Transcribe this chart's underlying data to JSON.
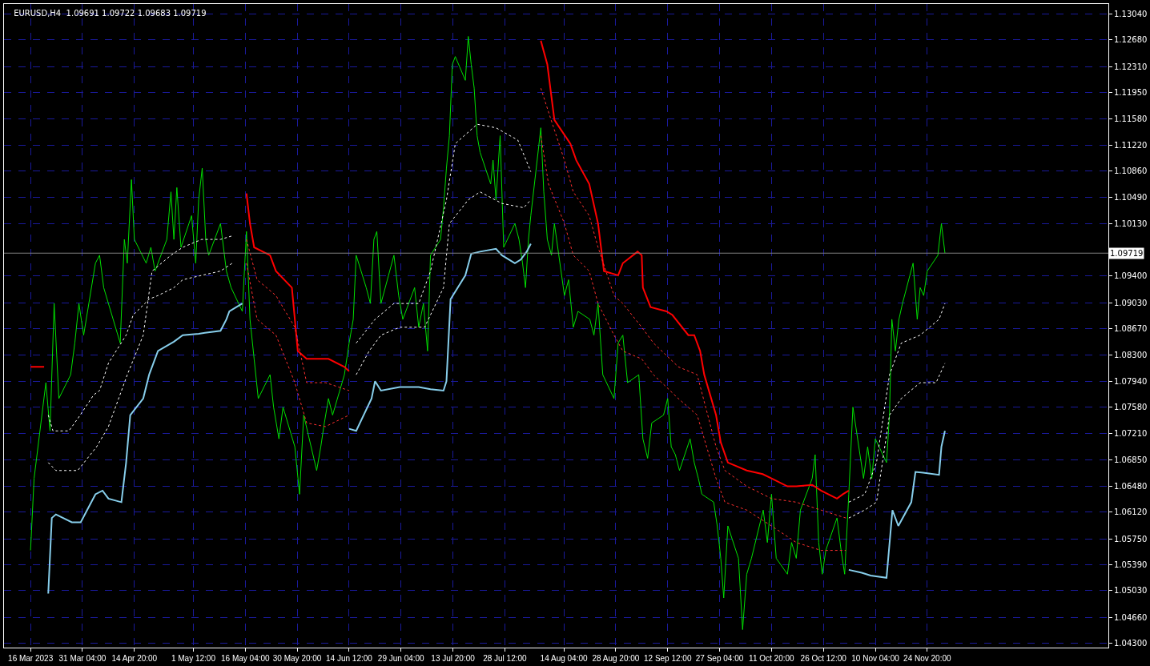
{
  "chart_data": {
    "type": "line",
    "title": "EURUSD,H4  1.09691 1.09722 1.09683 1.09719",
    "xlim": [
      "2023-03-09T00:00",
      "2024-01-15T00:00"
    ],
    "ylim": [
      1.0424,
      1.1318
    ],
    "xticks": [
      {
        "value": "2023-03-16T12:00",
        "label": "16 Mar 2023"
      },
      {
        "value": "2023-03-31T04:00",
        "label": "31 Mar 04:00"
      },
      {
        "value": "2023-04-14T20:00",
        "label": "14 Apr 20:00"
      },
      {
        "value": "2023-05-01T12:00",
        "label": "1 May 12:00"
      },
      {
        "value": "2023-05-16T04:00",
        "label": "16 May 04:00"
      },
      {
        "value": "2023-05-30T20:00",
        "label": "30 May 20:00"
      },
      {
        "value": "2023-06-14T12:00",
        "label": "14 Jun 12:00"
      },
      {
        "value": "2023-06-29T04:00",
        "label": "29 Jun 04:00"
      },
      {
        "value": "2023-07-13T20:00",
        "label": "13 Jul 20:00"
      },
      {
        "value": "2023-07-28T12:00",
        "label": "28 Jul 12:00"
      },
      {
        "value": "2023-08-14T04:00",
        "label": "14 Aug 04:00"
      },
      {
        "value": "2023-08-28T20:00",
        "label": "28 Aug 20:00"
      },
      {
        "value": "2023-09-12T12:00",
        "label": "12 Sep 12:00"
      },
      {
        "value": "2023-09-27T04:00",
        "label": "27 Sep 04:00"
      },
      {
        "value": "2023-10-11T20:00",
        "label": "11 Oct 20:00"
      },
      {
        "value": "2023-10-26T12:00",
        "label": "26 Oct 12:00"
      },
      {
        "value": "2023-11-10T04:00",
        "label": "10 Nov 04:00"
      },
      {
        "value": "2023-11-24T20:00",
        "label": "24 Nov 20:00"
      }
    ],
    "yticks": [
      {
        "value": 1.043,
        "label": "1.04300"
      },
      {
        "value": 1.0466,
        "label": "1.04660"
      },
      {
        "value": 1.0503,
        "label": "1.05030"
      },
      {
        "value": 1.0539,
        "label": "1.05390"
      },
      {
        "value": 1.0575,
        "label": "1.05750"
      },
      {
        "value": 1.0612,
        "label": "1.06120"
      },
      {
        "value": 1.0648,
        "label": "1.06480"
      },
      {
        "value": 1.0685,
        "label": "1.06850"
      },
      {
        "value": 1.0721,
        "label": "1.07210"
      },
      {
        "value": 1.0758,
        "label": "1.07580"
      },
      {
        "value": 1.0794,
        "label": "1.07940"
      },
      {
        "value": 1.083,
        "label": "1.08300"
      },
      {
        "value": 1.0867,
        "label": "1.08670"
      },
      {
        "value": 1.0903,
        "label": "1.09030"
      },
      {
        "value": 1.094,
        "label": "1.09400"
      },
      {
        "value": 1.1013,
        "label": "1.10130"
      },
      {
        "value": 1.1049,
        "label": "1.10490"
      },
      {
        "value": 1.1086,
        "label": "1.10860"
      },
      {
        "value": 1.1122,
        "label": "1.11220"
      },
      {
        "value": 1.1158,
        "label": "1.11580"
      },
      {
        "value": 1.1195,
        "label": "1.11950"
      },
      {
        "value": 1.1231,
        "label": "1.12310"
      },
      {
        "value": 1.1268,
        "label": "1.12680"
      },
      {
        "value": 1.1304,
        "label": "1.13040"
      }
    ],
    "grid": true,
    "marker": "none",
    "ref_lines": [
      {
        "axis": "y",
        "value": 1.09719,
        "label": "1.09719",
        "color": "#808080",
        "line_style": "solid"
      }
    ],
    "series": [
      {
        "color": "#00e000",
        "line_style": "solid",
        "x": [
          "2023-03-16T12:00",
          "2023-03-17T12:00",
          "2023-03-20T20:00",
          "2023-03-22T00:00",
          "2023-03-23T04:00",
          "2023-03-24T12:00",
          "2023-03-27T20:00",
          "2023-03-29T00:00",
          "2023-03-30T04:00",
          "2023-03-31T12:00",
          "2023-04-03T20:00",
          "2023-04-05T00:00",
          "2023-04-06T04:00",
          "2023-04-07T12:00",
          "2023-04-10T20:00",
          "2023-04-12T00:00",
          "2023-04-12T20:00",
          "2023-04-14T00:00",
          "2023-04-14T20:00",
          "2023-04-18T04:00",
          "2023-04-19T12:00",
          "2023-04-20T16:00",
          "2023-04-24T00:00",
          "2023-04-25T04:00",
          "2023-04-26T00:00",
          "2023-04-26T20:00",
          "2023-04-28T00:00",
          "2023-05-01T00:00",
          "2023-05-02T04:00",
          "2023-05-03T00:00",
          "2023-05-04T00:00",
          "2023-05-05T00:00",
          "2023-05-05T20:00",
          "2023-05-09T04:00",
          "2023-05-10T20:00",
          "2023-05-12T04:00",
          "2023-05-15T08:00",
          "2023-05-16T12:00",
          "2023-05-17T12:00",
          "2023-05-18T16:00",
          "2023-05-19T20:00",
          "2023-05-23T04:00",
          "2023-05-24T04:00",
          "2023-05-25T16:00",
          "2023-05-26T20:00",
          "2023-05-30T04:00",
          "2023-05-31T12:00",
          "2023-06-01T16:00",
          "2023-06-05T08:00",
          "2023-06-06T12:00",
          "2023-06-07T12:00",
          "2023-06-08T16:00",
          "2023-06-09T20:00",
          "2023-06-13T04:00",
          "2023-06-14T12:00",
          "2023-06-15T16:00",
          "2023-06-16T12:00",
          "2023-06-19T08:00",
          "2023-06-20T12:00",
          "2023-06-21T12:00",
          "2023-06-22T08:00",
          "2023-06-23T12:00",
          "2023-06-27T04:00",
          "2023-06-28T12:00",
          "2023-06-29T16:00",
          "2023-07-03T00:00",
          "2023-07-04T04:00",
          "2023-07-05T12:00",
          "2023-07-06T16:00",
          "2023-07-07T12:00",
          "2023-07-10T08:00",
          "2023-07-11T04:00",
          "2023-07-12T00:00",
          "2023-07-12T20:00",
          "2023-07-13T16:00",
          "2023-07-14T12:00",
          "2023-07-17T08:00",
          "2023-07-18T04:00",
          "2023-07-19T00:00",
          "2023-07-19T20:00",
          "2023-07-20T16:00",
          "2023-07-21T12:00",
          "2023-07-24T12:00",
          "2023-07-25T04:00",
          "2023-07-26T00:00",
          "2023-07-27T04:00",
          "2023-07-28T04:00",
          "2023-07-31T08:00",
          "2023-08-01T12:00",
          "2023-08-02T12:00",
          "2023-08-03T08:00",
          "2023-08-04T04:00",
          "2023-08-04T20:00",
          "2023-08-07T16:00",
          "2023-08-08T12:00",
          "2023-08-09T12:00",
          "2023-08-10T16:00",
          "2023-08-11T12:00",
          "2023-08-14T08:00",
          "2023-08-15T12:00",
          "2023-08-16T20:00",
          "2023-08-18T04:00",
          "2023-08-21T12:00",
          "2023-08-22T16:00",
          "2023-08-23T20:00",
          "2023-08-25T04:00",
          "2023-08-28T08:00",
          "2023-08-29T12:00",
          "2023-08-30T20:00",
          "2023-09-01T04:00",
          "2023-09-04T08:00",
          "2023-09-05T12:00",
          "2023-09-06T20:00",
          "2023-09-08T00:00",
          "2023-09-11T08:00",
          "2023-09-12T12:00",
          "2023-09-13T12:00",
          "2023-09-14T16:00",
          "2023-09-15T20:00",
          "2023-09-18T20:00",
          "2023-09-20T00:00",
          "2023-09-21T04:00",
          "2023-09-22T04:00",
          "2023-09-25T12:00",
          "2023-09-26T12:00",
          "2023-09-27T12:00",
          "2023-09-28T08:00",
          "2023-09-29T12:00",
          "2023-10-02T12:00",
          "2023-10-03T16:00",
          "2023-10-04T20:00",
          "2023-10-06T04:00",
          "2023-10-09T12:00",
          "2023-10-10T16:00",
          "2023-10-11T20:00",
          "2023-10-13T04:00",
          "2023-10-16T08:00",
          "2023-10-17T12:00",
          "2023-10-18T20:00",
          "2023-10-20T00:00",
          "2023-10-23T08:00",
          "2023-10-24T04:00",
          "2023-10-25T04:00",
          "2023-10-26T04:00",
          "2023-10-27T04:00",
          "2023-10-30T08:00",
          "2023-10-31T12:00",
          "2023-11-01T12:00",
          "2023-11-02T16:00",
          "2023-11-03T20:00",
          "2023-11-06T20:00",
          "2023-11-08T00:00",
          "2023-11-09T04:00",
          "2023-11-10T04:00",
          "2023-11-13T08:00",
          "2023-11-14T04:00",
          "2023-11-14T20:00",
          "2023-11-15T20:00",
          "2023-11-16T20:00",
          "2023-11-17T20:00",
          "2023-11-20T20:00",
          "2023-11-22T00:00",
          "2023-11-22T20:00",
          "2023-11-23T20:00",
          "2023-11-24T20:00",
          "2023-11-27T20:00",
          "2023-11-28T20:00",
          "2023-11-29T20:00"
        ],
        "values": [
          1.0559,
          1.0659,
          1.0792,
          1.0725,
          1.0902,
          1.077,
          1.0803,
          1.0847,
          1.0902,
          1.0858,
          1.0958,
          1.0969,
          1.0924,
          1.0902,
          1.0847,
          1.0991,
          1.0958,
          1.1074,
          1.0991,
          1.0958,
          1.098,
          1.0947,
          1.0991,
          1.1057,
          1.0991,
          1.1063,
          1.098,
          1.1024,
          1.0958,
          1.1046,
          1.109,
          1.0991,
          1.0969,
          1.1013,
          1.0947,
          1.0924,
          1.0891,
          1.1002,
          1.088,
          1.0825,
          1.077,
          1.0803,
          1.0758,
          1.0714,
          1.0758,
          1.0703,
          1.0637,
          1.0747,
          1.067,
          1.0703,
          1.0736,
          1.077,
          1.0747,
          1.0803,
          1.0847,
          1.088,
          1.0969,
          1.0924,
          1.0902,
          1.0991,
          1.1002,
          1.0902,
          1.0969,
          1.0913,
          1.088,
          1.0924,
          1.0869,
          1.0902,
          1.0836,
          1.0969,
          1.0991,
          1.1035,
          1.109,
          1.1135,
          1.1234,
          1.1245,
          1.1212,
          1.1273,
          1.1234,
          1.1201,
          1.1135,
          1.1112,
          1.1068,
          1.1101,
          1.1046,
          1.1135,
          1.098,
          1.1013,
          1.0991,
          1.0958,
          1.0924,
          1.0991,
          1.1024,
          1.1146,
          1.1057,
          1.0991,
          1.0969,
          1.1013,
          1.0913,
          1.0935,
          1.0869,
          1.0891,
          1.088,
          1.0858,
          1.0902,
          1.0803,
          1.077,
          1.0847,
          1.0858,
          1.0792,
          1.0803,
          1.0714,
          1.0687,
          1.0736,
          1.0747,
          1.077,
          1.0703,
          1.0692,
          1.067,
          1.0714,
          1.0681,
          1.0659,
          1.0637,
          1.0626,
          1.0593,
          1.0548,
          1.0493,
          1.0593,
          1.0548,
          1.0449,
          1.0526,
          1.0548,
          1.0615,
          1.057,
          1.0637,
          1.0548,
          1.0526,
          1.057,
          1.0548,
          1.0615,
          1.0659,
          1.0692,
          1.057,
          1.0526,
          1.0559,
          1.0604,
          1.0559,
          1.0526,
          1.0637,
          1.0758,
          1.0659,
          1.0703,
          1.0659,
          1.0714,
          1.0681,
          1.0747,
          1.088,
          1.0836,
          1.088,
          1.0902,
          1.0958,
          1.088,
          1.0924,
          1.0913,
          1.0947,
          1.0969,
          1.1013,
          1.0972
        ]
      },
      {
        "color": "#ff0000",
        "line_style": "solid",
        "x": [
          "2023-03-16T12:00",
          "2023-03-20T08:00",
          "2023-03-20T12:00",
          "2023-05-16T12:00",
          "2023-05-17T12:00",
          "2023-05-18T16:00",
          "2023-05-23T04:00",
          "2023-05-24T20:00",
          "2023-05-29T08:00",
          "2023-05-31T00:00",
          "2023-06-02T12:00",
          "2023-06-08T16:00",
          "2023-06-13T04:00",
          "2023-06-14T12:00",
          "2023-06-19T04:00",
          "2023-08-07T16:00",
          "2023-08-09T12:00",
          "2023-08-11T12:00",
          "2023-08-16T00:00",
          "2023-08-17T16:00",
          "2023-08-21T08:00",
          "2023-08-23T20:00",
          "2023-08-25T12:00",
          "2023-08-29T12:00",
          "2023-08-30T20:00",
          "2023-09-04T00:00",
          "2023-09-05T04:00",
          "2023-09-05T12:00",
          "2023-09-07T16:00",
          "2023-09-12T04:00",
          "2023-09-13T20:00",
          "2023-09-18T08:00",
          "2023-09-20T00:00",
          "2023-09-21T16:00",
          "2023-09-22T20:00",
          "2023-09-26T04:00",
          "2023-09-27T12:00",
          "2023-09-29T12:00",
          "2023-10-04T20:00",
          "2023-10-09T08:00",
          "2023-10-11T20:00",
          "2023-10-16T08:00",
          "2023-10-18T20:00",
          "2023-10-23T08:00",
          "2023-10-25T20:00",
          "2023-10-30T08:00",
          "2023-11-01T00:00",
          "2023-11-02T16:00"
        ],
        "values": [
          1.0814,
          1.0814,
          null,
          1.1055,
          1.1013,
          1.098,
          1.0969,
          1.0947,
          1.0924,
          1.0836,
          1.0825,
          1.0825,
          1.0814,
          1.0808,
          null,
          1.1267,
          1.1234,
          1.1157,
          1.1124,
          1.1101,
          1.1068,
          1.1013,
          1.0947,
          1.0941,
          1.0958,
          1.0974,
          1.0969,
          1.0924,
          1.0897,
          1.0891,
          1.0886,
          1.0858,
          1.0858,
          1.0836,
          1.0803,
          1.0747,
          1.0709,
          1.0681,
          1.067,
          1.0665,
          1.0659,
          1.0648,
          1.0648,
          1.065,
          1.0642,
          1.0631,
          1.0637,
          1.0642
        ]
      },
      {
        "color": "#87ceeb",
        "line_style": "solid",
        "x": [
          "2023-03-21T12:00",
          "2023-03-22T12:00",
          "2023-03-23T16:00",
          "2023-03-28T04:00",
          "2023-03-30T16:00",
          "2023-04-03T20:00",
          "2023-04-05T20:00",
          "2023-04-07T12:00",
          "2023-04-11T04:00",
          "2023-04-12T12:00",
          "2023-04-13T16:00",
          "2023-04-17T08:00",
          "2023-04-19T00:00",
          "2023-04-21T12:00",
          "2023-04-26T00:00",
          "2023-04-28T12:00",
          "2023-05-03T00:00",
          "2023-05-09T04:00",
          "2023-05-10T20:00",
          "2023-05-11T16:00",
          "2023-05-15T08:00",
          "2023-05-16T00:00",
          "2023-06-14T12:00",
          "2023-06-16T12:00",
          "2023-06-20T20:00",
          "2023-06-21T20:00",
          "2023-06-23T12:00",
          "2023-06-28T20:00",
          "2023-07-04T04:00",
          "2023-07-07T12:00",
          "2023-07-11T04:00",
          "2023-07-12T00:00",
          "2023-07-13T04:00",
          "2023-07-17T08:00",
          "2023-07-19T00:00",
          "2023-07-21T12:00",
          "2023-07-26T00:00",
          "2023-07-27T16:00",
          "2023-07-31T08:00",
          "2023-08-02T00:00",
          "2023-08-03T16:00",
          "2023-08-04T20:00",
          "2023-09-19T20:00",
          "2023-11-02T16:00",
          "2023-11-06T08:00",
          "2023-11-08T20:00",
          "2023-11-13T08:00",
          "2023-11-15T00:00",
          "2023-11-16T16:00",
          "2023-11-20T08:00",
          "2023-11-21T12:00",
          "2023-11-23T16:00",
          "2023-11-28T04:00",
          "2023-11-28T20:00",
          "2023-11-29T20:00"
        ],
        "values": [
          1.0499,
          1.0604,
          1.0609,
          1.0598,
          1.0598,
          1.0637,
          1.0642,
          1.0631,
          1.0626,
          1.0681,
          1.0747,
          1.077,
          1.0803,
          1.0836,
          1.0849,
          1.0858,
          1.086,
          1.0864,
          1.088,
          1.0891,
          1.0902,
          null,
          1.0728,
          1.0725,
          1.077,
          1.0794,
          1.0781,
          1.0786,
          1.0786,
          1.0783,
          1.0781,
          1.0794,
          1.0908,
          1.0941,
          1.0971,
          1.0974,
          1.0978,
          1.0969,
          1.0958,
          1.0963,
          1.0974,
          1.0985,
          null,
          1.0532,
          1.0528,
          1.0524,
          1.0521,
          1.0615,
          1.0593,
          1.0626,
          1.0668,
          1.0667,
          1.0664,
          1.0703,
          1.0725
        ]
      },
      {
        "color": "#ffffff",
        "line_style": "dotted",
        "x": [
          "2023-03-21T12:00",
          "2023-03-22T20:00",
          "2023-03-27T08:00",
          "2023-03-29T20:00",
          "2023-04-03T08:00",
          "2023-04-05T00:00",
          "2023-04-07T12:00",
          "2023-04-12T12:00",
          "2023-04-14T12:00",
          "2023-04-19T00:00",
          "2023-04-21T12:00",
          "2023-04-26T00:00",
          "2023-04-28T12:00",
          "2023-05-03T20:00",
          "2023-05-09T04:00",
          "2023-05-12T12:00",
          "2023-05-16T00:00",
          "2023-06-16T12:00",
          "2023-06-20T04:00",
          "2023-06-23T12:00",
          "2023-06-28T20:00",
          "2023-07-05T20:00",
          "2023-07-11T04:00",
          "2023-07-12T20:00",
          "2023-07-18T04:00",
          "2023-07-21T12:00",
          "2023-07-27T16:00",
          "2023-08-02T20:00",
          "2023-08-04T20:00",
          "2023-09-19T20:00",
          "2023-11-02T16:00",
          "2023-11-07T04:00",
          "2023-11-10T12:00",
          "2023-11-14T04:00",
          "2023-11-17T12:00",
          "2023-11-22T20:00",
          "2023-11-27T08:00",
          "2023-11-29T20:00"
        ],
        "values": [
          1.0747,
          1.0725,
          1.0725,
          1.0742,
          1.0775,
          1.0781,
          1.0819,
          1.0858,
          1.0886,
          1.0908,
          1.0913,
          1.0924,
          1.0935,
          1.0941,
          1.0947,
          1.0958,
          null,
          1.0803,
          1.0836,
          1.0858,
          1.0869,
          1.0869,
          1.0924,
          1.1013,
          1.1046,
          1.1057,
          1.1041,
          1.1035,
          1.1046,
          null,
          1.0604,
          1.0615,
          1.0626,
          1.0747,
          1.077,
          1.0792,
          1.0792,
          1.0819
        ]
      },
      {
        "color": "#ffffff",
        "line_style": "dotted",
        "x": [
          "2023-03-21T12:00",
          "2023-03-23T16:00",
          "2023-03-29T20:00",
          "2023-04-04T04:00",
          "2023-04-07T12:00",
          "2023-04-12T20:00",
          "2023-04-17T08:00",
          "2023-04-19T20:00",
          "2023-04-25T04:00",
          "2023-04-28T12:00",
          "2023-05-03T20:00",
          "2023-05-09T04:00",
          "2023-05-12T12:00",
          "2023-05-16T00:00",
          "2023-06-16T12:00",
          "2023-06-21T20:00",
          "2023-06-27T04:00",
          "2023-07-04T04:00",
          "2023-07-07T12:00",
          "2023-07-12T00:00",
          "2023-07-14T12:00",
          "2023-07-20T16:00",
          "2023-07-26T00:00",
          "2023-08-01T04:00",
          "2023-08-04T20:00",
          "2023-09-19T20:00",
          "2023-11-02T16:00",
          "2023-11-07T04:00",
          "2023-11-10T12:00",
          "2023-11-14T04:00",
          "2023-11-17T12:00",
          "2023-11-22T20:00",
          "2023-11-28T04:00",
          "2023-11-29T20:00"
        ],
        "values": [
          1.0681,
          1.067,
          1.067,
          1.0703,
          1.0731,
          1.0803,
          1.0858,
          1.0947,
          1.0969,
          1.098,
          1.0991,
          1.0991,
          1.0996,
          null,
          1.0847,
          1.088,
          1.0902,
          1.0902,
          1.0947,
          1.1046,
          1.1124,
          1.1151,
          1.1146,
          1.1129,
          1.1085,
          null,
          1.0626,
          1.0637,
          1.0681,
          1.0803,
          1.0847,
          1.0858,
          1.088,
          1.0902
        ]
      },
      {
        "color": "#ff3030",
        "line_style": "dotted",
        "x": [
          "2023-05-16T12:00",
          "2023-05-19T12:00",
          "2023-05-24T20:00",
          "2023-05-30T04:00",
          "2023-06-02T12:00",
          "2023-06-07T20:00",
          "2023-06-14T12:00",
          "2023-06-19T04:00",
          "2023-08-07T16:00",
          "2023-08-09T20:00",
          "2023-08-14T08:00",
          "2023-08-16T20:00",
          "2023-08-21T08:00",
          "2023-08-23T20:00",
          "2023-08-28T08:00",
          "2023-08-30T20:00",
          "2023-09-05T04:00",
          "2023-09-08T12:00",
          "2023-09-15T12:00",
          "2023-09-20T20:00",
          "2023-09-26T04:00",
          "2023-09-28T16:00",
          "2023-10-04T20:00",
          "2023-10-11T20:00",
          "2023-10-18T20:00",
          "2023-10-25T20:00",
          "2023-11-01T20:00"
        ],
        "values": [
          1.0991,
          1.0935,
          1.0913,
          1.0869,
          1.0792,
          1.0792,
          1.0781,
          null,
          1.1201,
          1.1168,
          1.1101,
          1.1057,
          1.1024,
          1.098,
          1.0913,
          1.0902,
          1.0869,
          1.0847,
          1.0814,
          1.0803,
          1.0703,
          1.067,
          1.0648,
          1.0631,
          1.0626,
          1.0615,
          1.0604
        ]
      },
      {
        "color": "#ff3030",
        "line_style": "dotted",
        "x": [
          "2023-05-16T12:00",
          "2023-05-19T12:00",
          "2023-05-24T20:00",
          "2023-05-30T04:00",
          "2023-06-02T12:00",
          "2023-06-07T20:00",
          "2023-06-14T12:00",
          "2023-06-19T04:00",
          "2023-08-07T16:00",
          "2023-08-09T20:00",
          "2023-08-14T08:00",
          "2023-08-16T20:00",
          "2023-08-21T08:00",
          "2023-08-23T20:00",
          "2023-08-28T08:00",
          "2023-08-30T20:00",
          "2023-09-05T04:00",
          "2023-09-08T12:00",
          "2023-09-15T12:00",
          "2023-09-20T20:00",
          "2023-09-26T04:00",
          "2023-09-28T16:00",
          "2023-10-04T20:00",
          "2023-10-11T20:00",
          "2023-10-18T20:00",
          "2023-10-25T20:00",
          "2023-11-01T20:00"
        ],
        "values": [
          1.0958,
          1.088,
          1.0858,
          1.0792,
          1.0736,
          1.0731,
          1.0747,
          null,
          1.1135,
          1.1068,
          1.1013,
          1.0969,
          1.0947,
          1.0902,
          1.0858,
          1.0836,
          1.0825,
          1.0803,
          1.077,
          1.0747,
          1.0659,
          1.0626,
          1.0615,
          1.0593,
          1.057,
          1.0559,
          1.0559
        ]
      }
    ]
  }
}
